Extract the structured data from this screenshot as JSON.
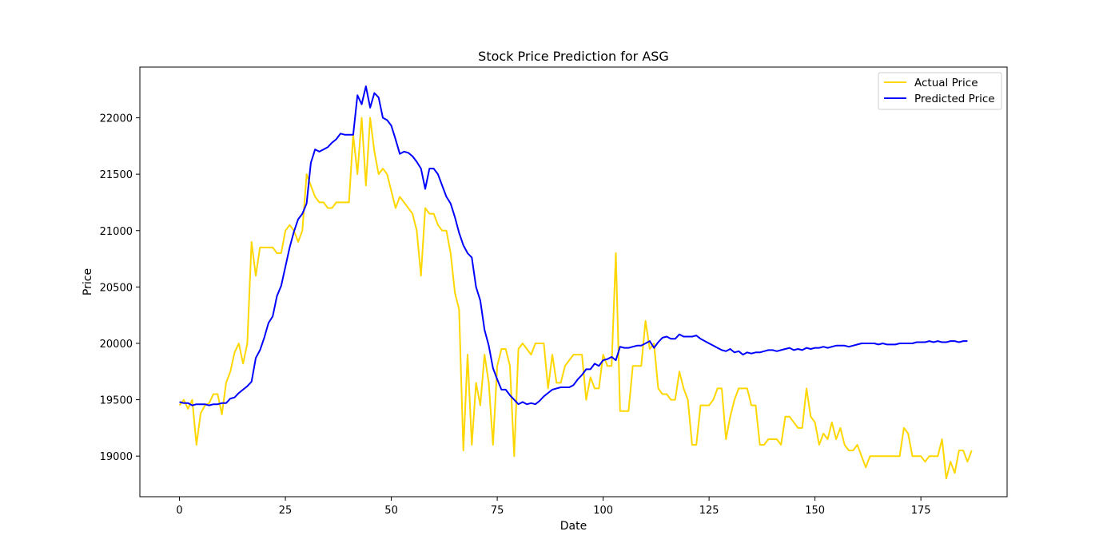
{
  "chart_data": {
    "type": "line",
    "title": "Stock Price Prediction for ASG",
    "xlabel": "Date",
    "ylabel": "Price",
    "xlim": [
      -9.35,
      195.35
    ],
    "ylim": [
      18640,
      22450
    ],
    "xticks": [
      0,
      25,
      50,
      75,
      100,
      125,
      150,
      175
    ],
    "yticks": [
      19000,
      19500,
      20000,
      20500,
      21000,
      21500,
      22000
    ],
    "grid": false,
    "legend_position": "top-right",
    "series": [
      {
        "name": "Actual Price",
        "color": "#ffd700",
        "values": [
          19450,
          19500,
          19420,
          19500,
          19100,
          19380,
          19450,
          19470,
          19550,
          19550,
          19370,
          19650,
          19750,
          19920,
          20000,
          19820,
          20000,
          20900,
          20600,
          20850,
          20850,
          20850,
          20850,
          20800,
          20800,
          21000,
          21050,
          21000,
          20900,
          21000,
          21500,
          21400,
          21300,
          21250,
          21250,
          21200,
          21200,
          21250,
          21250,
          21250,
          21250,
          21850,
          21500,
          22000,
          21400,
          22000,
          21700,
          21500,
          21550,
          21500,
          21350,
          21200,
          21300,
          21250,
          21200,
          21150,
          21000,
          20600,
          21200,
          21150,
          21150,
          21050,
          21000,
          21000,
          20800,
          20450,
          20300,
          19050,
          19900,
          19100,
          19650,
          19450,
          19900,
          19650,
          19100,
          19800,
          19950,
          19950,
          19800,
          19000,
          19950,
          20000,
          19950,
          19900,
          20000,
          20000,
          20000,
          19600,
          19900,
          19650,
          19650,
          19800,
          19850,
          19900,
          19900,
          19900,
          19500,
          19700,
          19600,
          19600,
          19900,
          19800,
          19800,
          20800,
          19400,
          19400,
          19400,
          19800,
          19800,
          19800,
          20200,
          19950,
          20000,
          19600,
          19550,
          19550,
          19500,
          19500,
          19750,
          19600,
          19500,
          19100,
          19100,
          19450,
          19450,
          19450,
          19500,
          19600,
          19600,
          19150,
          19350,
          19500,
          19600,
          19600,
          19600,
          19450,
          19450,
          19100,
          19100,
          19150,
          19150,
          19150,
          19100,
          19350,
          19350,
          19300,
          19250,
          19250,
          19600,
          19350,
          19300,
          19100,
          19200,
          19150,
          19300,
          19150,
          19250,
          19100,
          19050,
          19050,
          19100,
          19000,
          18900,
          19000,
          19000,
          19000,
          19000,
          19000,
          19000,
          19000,
          19000,
          19250,
          19200,
          19000,
          19000,
          19000,
          18950,
          19000,
          19000,
          19000,
          19150,
          18800,
          18950,
          18850,
          19050,
          19050,
          18950,
          19050
        ]
      },
      {
        "name": "Predicted Price",
        "color": "#0000ff",
        "values": [
          19480,
          19470,
          19470,
          19450,
          19460,
          19460,
          19460,
          19450,
          19460,
          19460,
          19470,
          19470,
          19510,
          19520,
          19560,
          19590,
          19620,
          19660,
          19870,
          19940,
          20050,
          20180,
          20240,
          20420,
          20510,
          20680,
          20850,
          20990,
          21100,
          21150,
          21240,
          21600,
          21720,
          21700,
          21720,
          21740,
          21780,
          21810,
          21860,
          21850,
          21850,
          21850,
          22200,
          22120,
          22280,
          22090,
          22220,
          22180,
          22000,
          21980,
          21930,
          21810,
          21680,
          21700,
          21690,
          21660,
          21610,
          21550,
          21370,
          21550,
          21550,
          21500,
          21400,
          21300,
          21240,
          21120,
          20980,
          20870,
          20800,
          20760,
          20500,
          20380,
          20120,
          19980,
          19780,
          19680,
          19590,
          19590,
          19540,
          19500,
          19460,
          19480,
          19460,
          19470,
          19460,
          19490,
          19530,
          19560,
          19590,
          19600,
          19610,
          19610,
          19610,
          19630,
          19680,
          19720,
          19770,
          19770,
          19820,
          19800,
          19850,
          19860,
          19880,
          19850,
          19970,
          19960,
          19960,
          19970,
          19980,
          19980,
          20000,
          20020,
          19960,
          20010,
          20050,
          20060,
          20040,
          20040,
          20080,
          20060,
          20060,
          20060,
          20070,
          20040,
          20020,
          20000,
          19980,
          19960,
          19940,
          19930,
          19950,
          19920,
          19930,
          19900,
          19920,
          19910,
          19920,
          19920,
          19930,
          19940,
          19940,
          19930,
          19940,
          19950,
          19960,
          19940,
          19950,
          19940,
          19960,
          19950,
          19960,
          19960,
          19970,
          19960,
          19970,
          19980,
          19980,
          19980,
          19970,
          19980,
          19990,
          20000,
          20000,
          20000,
          20000,
          19990,
          20000,
          19990,
          19990,
          19990,
          20000,
          20000,
          20000,
          20000,
          20010,
          20010,
          20010,
          20020,
          20010,
          20020,
          20010,
          20010,
          20020,
          20020,
          20010,
          20020,
          20020
        ]
      }
    ]
  }
}
